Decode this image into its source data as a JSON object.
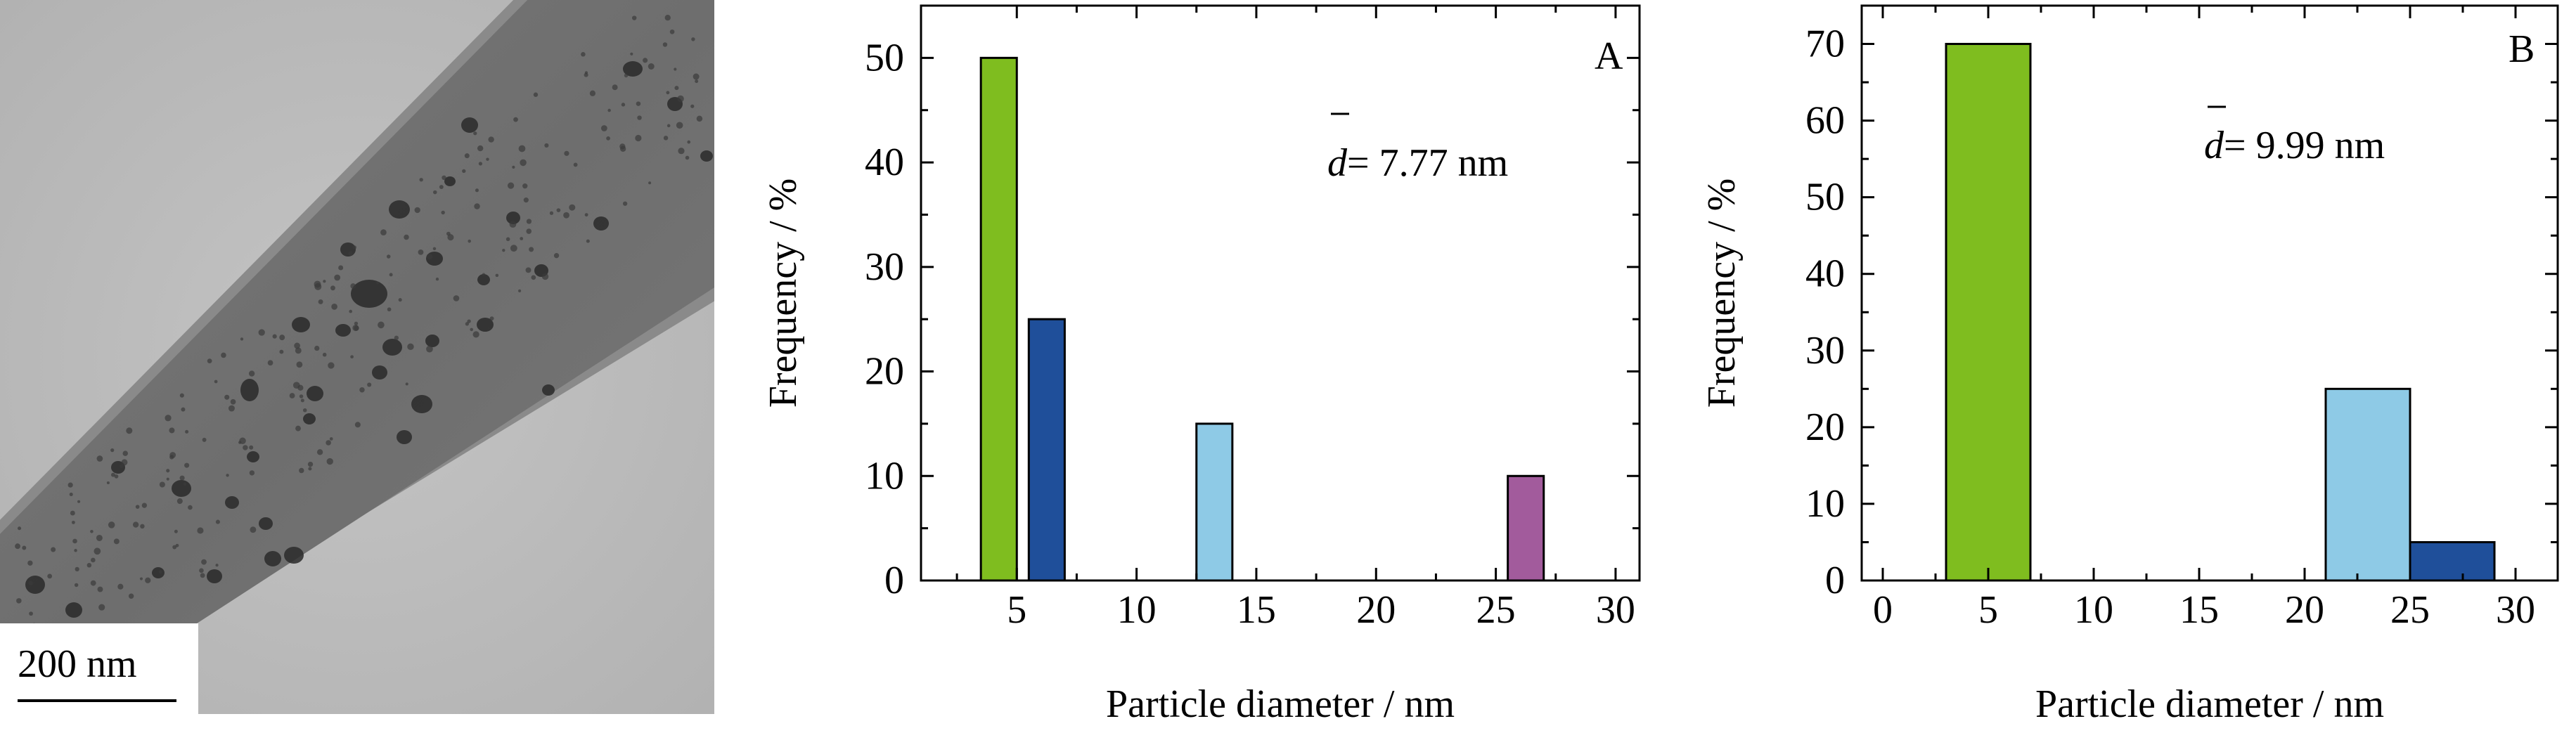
{
  "micrograph": {
    "scale_bar_label": "200 nm"
  },
  "chart_data": [
    {
      "type": "bar",
      "panel_label": "A",
      "annotation": {
        "symbol": "d",
        "text": "= 7.77 nm"
      },
      "title": "",
      "xlabel": "Particle diameter / nm",
      "ylabel": "Frequency / %",
      "xlim": [
        1,
        31
      ],
      "ylim": [
        0,
        55
      ],
      "xticks": [
        5,
        10,
        15,
        20,
        25,
        30
      ],
      "yticks": [
        0,
        10,
        20,
        30,
        40,
        50
      ],
      "bars": [
        {
          "x0": 3.5,
          "x1": 5,
          "value": 50,
          "color": "#7fbd1f"
        },
        {
          "x0": 5.5,
          "x1": 7,
          "value": 25,
          "color": "#1f4f9a"
        },
        {
          "x0": 12.5,
          "x1": 14,
          "value": 15,
          "color": "#8ecae6"
        },
        {
          "x0": 25.5,
          "x1": 27,
          "value": 10,
          "color": "#a25b9c"
        }
      ],
      "grid": false
    },
    {
      "type": "bar",
      "panel_label": "B",
      "annotation": {
        "symbol": "d",
        "text": "= 9.99 nm"
      },
      "title": "",
      "xlabel": "Particle diameter / nm",
      "ylabel": "Frequency / %",
      "xlim": [
        -1,
        32
      ],
      "ylim": [
        0,
        75
      ],
      "xticks": [
        0,
        5,
        10,
        15,
        20,
        25,
        30
      ],
      "yticks": [
        0,
        10,
        20,
        30,
        40,
        50,
        60,
        70
      ],
      "bars": [
        {
          "x0": 3,
          "x1": 7,
          "value": 70,
          "color": "#7fbd1f"
        },
        {
          "x0": 21,
          "x1": 25,
          "value": 25,
          "color": "#8ecae6"
        },
        {
          "x0": 25,
          "x1": 29,
          "value": 5,
          "color": "#1f4f9a"
        }
      ],
      "grid": false
    }
  ]
}
